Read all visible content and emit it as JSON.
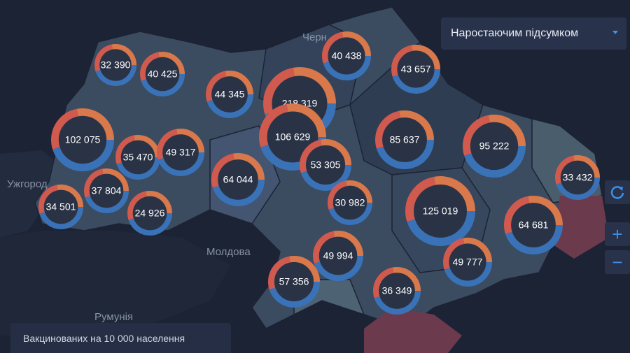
{
  "control": {
    "mode": "Наростаючим підсумком"
  },
  "legend": {
    "title": "Вакцинованих на 10 000 населення"
  },
  "places": [
    "Ужгород",
    "Молдова",
    "Румунія",
    "Черн"
  ],
  "markers": [
    {
      "label": "32 390"
    },
    {
      "label": "40 425"
    },
    {
      "label": "44 345"
    },
    {
      "label": "218 319"
    },
    {
      "label": "40 438"
    },
    {
      "label": "43 657"
    },
    {
      "label": "102 075"
    },
    {
      "label": "35 470"
    },
    {
      "label": "49 317"
    },
    {
      "label": "106 629"
    },
    {
      "label": "53 305"
    },
    {
      "label": "85 637"
    },
    {
      "label": "95 222"
    },
    {
      "label": "64 044"
    },
    {
      "label": "33 432"
    },
    {
      "label": "37 804"
    },
    {
      "label": "34 501"
    },
    {
      "label": "24 926"
    },
    {
      "label": "30 982"
    },
    {
      "label": "125 019"
    },
    {
      "label": "64 681"
    },
    {
      "label": "49 994"
    },
    {
      "label": "49 777"
    },
    {
      "label": "57 356"
    },
    {
      "label": "36 349"
    }
  ]
}
